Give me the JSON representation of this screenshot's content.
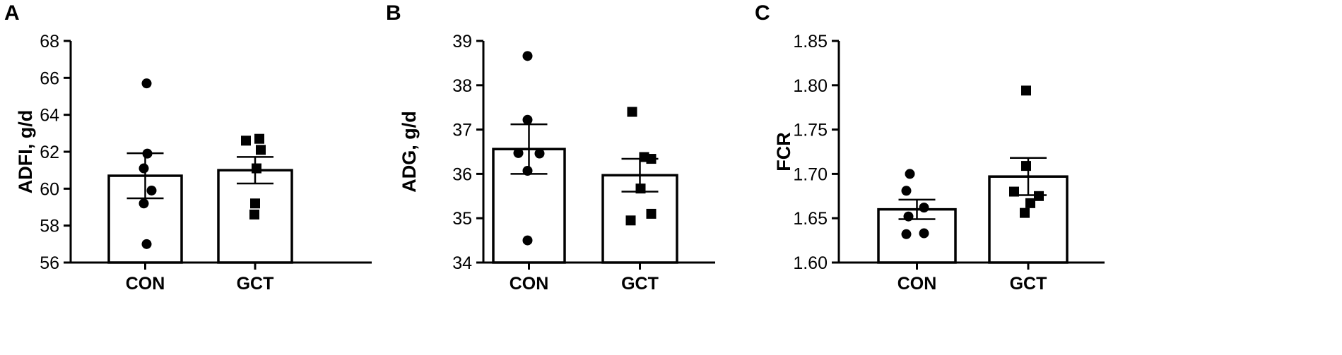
{
  "chart_data": [
    {
      "panel": "A",
      "type": "bar",
      "ylabel": "ADFI, g/d",
      "ylim": [
        56,
        68
      ],
      "yticks": [
        "56",
        "58",
        "60",
        "62",
        "64",
        "66",
        "68"
      ],
      "categories": [
        "CON",
        "GCT"
      ],
      "values": [
        60.7,
        61.0
      ],
      "sem": [
        1.22,
        0.72
      ],
      "points": [
        {
          "category": "CON",
          "marker": "circle",
          "values": [
            65.7,
            61.9,
            61.1,
            59.9,
            59.2,
            57.0
          ]
        },
        {
          "category": "GCT",
          "marker": "square",
          "values": [
            62.6,
            62.7,
            62.1,
            61.1,
            59.2,
            58.6
          ]
        }
      ],
      "grid": false
    },
    {
      "panel": "B",
      "type": "bar",
      "ylabel": "ADG, g/d",
      "ylim": [
        34,
        39
      ],
      "yticks": [
        "34",
        "35",
        "36",
        "37",
        "38",
        "39"
      ],
      "categories": [
        "CON",
        "GCT"
      ],
      "values": [
        36.56,
        35.97
      ],
      "sem": [
        0.56,
        0.37
      ],
      "points": [
        {
          "category": "CON",
          "marker": "circle",
          "values": [
            38.66,
            37.22,
            36.47,
            36.46,
            36.07,
            34.5
          ]
        },
        {
          "category": "GCT",
          "marker": "square",
          "values": [
            37.4,
            36.38,
            36.34,
            35.67,
            35.1,
            34.95
          ]
        }
      ],
      "grid": false
    },
    {
      "panel": "C",
      "type": "bar",
      "ylabel": "FCR",
      "ylim": [
        1.6,
        1.85
      ],
      "yticks": [
        "1.60",
        "1.65",
        "1.70",
        "1.75",
        "1.80",
        "1.85"
      ],
      "categories": [
        "CON",
        "GCT"
      ],
      "values": [
        1.66,
        1.697
      ],
      "sem": [
        0.011,
        0.021
      ],
      "points": [
        {
          "category": "CON",
          "marker": "circle",
          "values": [
            1.7,
            1.681,
            1.662,
            1.652,
            1.632,
            1.633
          ]
        },
        {
          "category": "GCT",
          "marker": "square",
          "values": [
            1.794,
            1.709,
            1.68,
            1.675,
            1.667,
            1.656
          ]
        }
      ],
      "grid": false
    }
  ]
}
